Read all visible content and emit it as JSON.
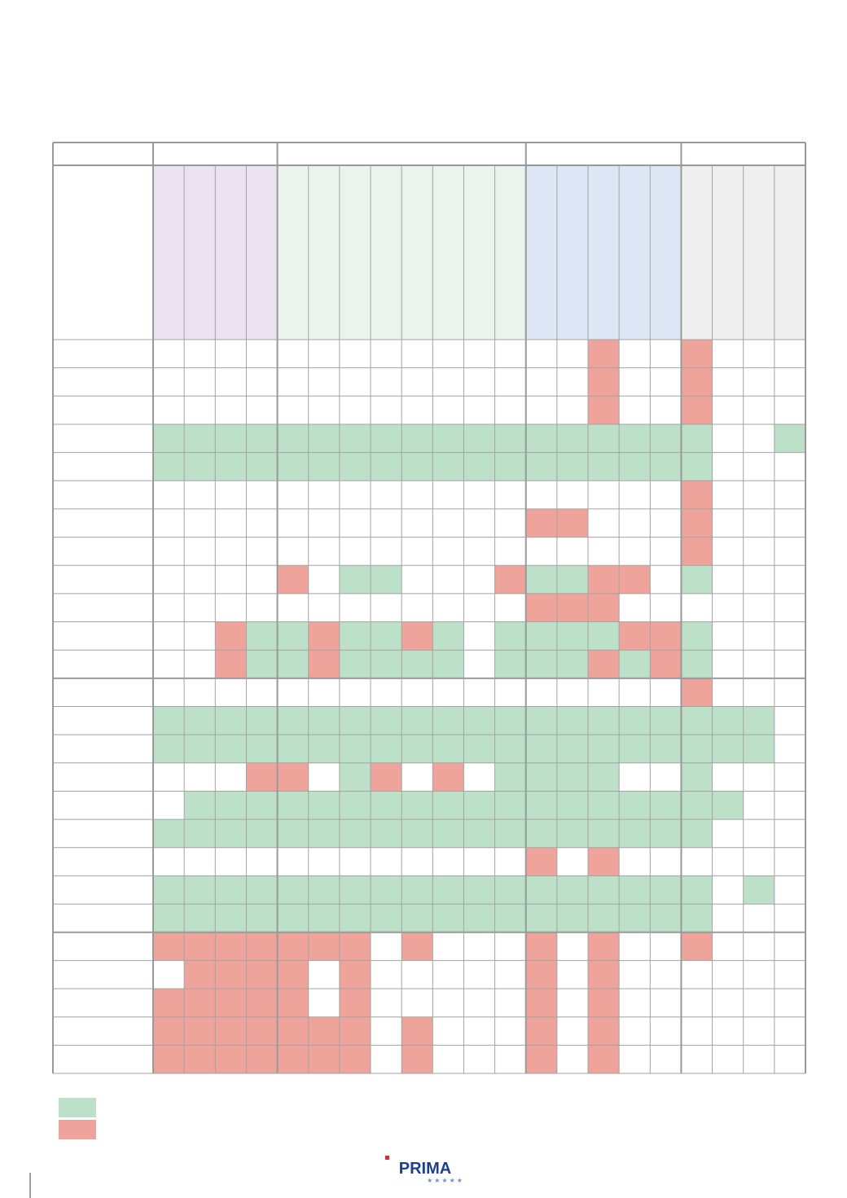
{
  "table": {
    "groups": [
      {
        "columns": 4,
        "color": "#ece3f1"
      },
      {
        "columns": 8,
        "color": "#eaf4ec"
      },
      {
        "columns": 5,
        "color": "#dde6f5"
      },
      {
        "columns": 4,
        "color": "#efefef"
      }
    ],
    "states": {
      "g": "#bde0c9",
      "r": "#eea49a",
      "w": "#ffffff"
    },
    "rows": [
      "wwwwwwwwwwwwwwrwwrwww",
      "wwwwwwwwwwwwwwrwwrwww",
      "wwwwwwwwwwwwwwrwwrwww",
      "ggggggggggggggggggwwg",
      "ggggggggggggggggggwww",
      "wwwwwwwwwwwwwwwwwrwww",
      "wwwwwwwwwwwwrrwwwrwww",
      "wwwwwwwwwwwwwwwwwrwww",
      "wwwwrwggwwwrggrrwgwww",
      "wwwwwwwwwwwwrrrwwwwww",
      "wwrggrggrgwggggrrgwww",
      "wwrggrggggwgggrgrgwww",
      "wwwwwwwwwwwwwwwwwrwww",
      "ggggggggggggggggggggw",
      "ggggggggggggggggggggw",
      "wwwrrwgrwrwggggwwgwww",
      "wggggggggggggggggggww",
      "ggggggggggggggggggwww",
      "wwwwwwwwwwwwrwrwwwwww",
      "ggggggggggggggggggwgw",
      "ggggggggggggggggggwww",
      "rrrrrrrwrwwwrwrwwrwww",
      "wrrrrwrwwwwwrwrwwwwww",
      "rrrrrwrwwwwwrwrwwwwww",
      "rrrrrrrwrwwwrwrwwwwww",
      "rrrrrrrwrwwwrwrwwwwww"
    ],
    "section_breaks": [
      12,
      21
    ]
  },
  "legend": [
    {
      "state": "g"
    },
    {
      "state": "r"
    }
  ],
  "logo": "PRIMA"
}
